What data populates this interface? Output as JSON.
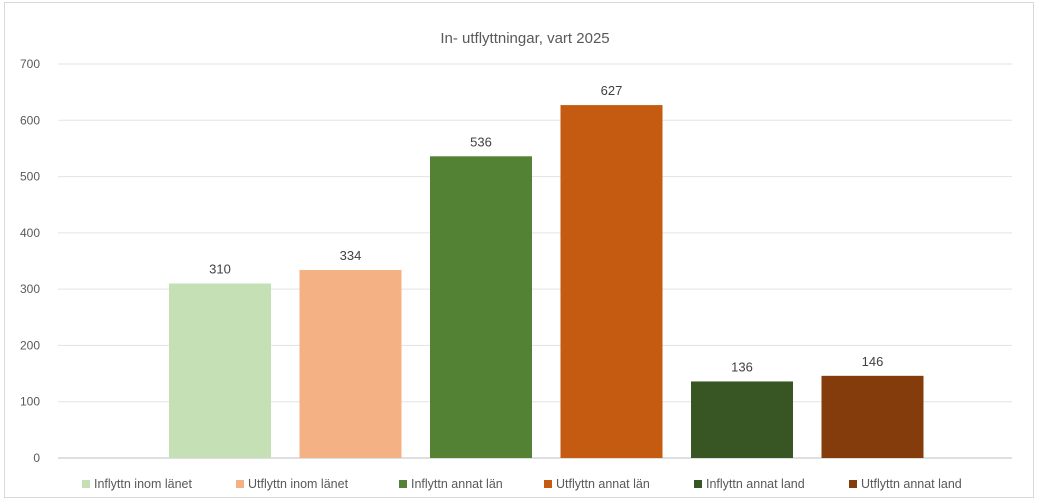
{
  "chart_data": {
    "type": "bar",
    "title": "In- utflyttningar, vart 2025",
    "xlabel": "",
    "ylabel": "",
    "ylim": [
      0,
      700
    ],
    "yticks": [
      0,
      100,
      200,
      300,
      400,
      500,
      600,
      700
    ],
    "grid": true,
    "legend_position": "bottom",
    "series": [
      {
        "name": "Inflyttn inom länet",
        "values": [
          310
        ],
        "color": "#c5e0b4"
      },
      {
        "name": "Utflyttn inom länet",
        "values": [
          334
        ],
        "color": "#f4b183"
      },
      {
        "name": "Inflyttn annat län",
        "values": [
          536
        ],
        "color": "#548235"
      },
      {
        "name": "Utflyttn annat län",
        "values": [
          627
        ],
        "color": "#c55a11"
      },
      {
        "name": "Inflyttn annat land",
        "values": [
          136
        ],
        "color": "#375623"
      },
      {
        "name": "Utflyttn annat land",
        "values": [
          146
        ],
        "color": "#843c0c"
      }
    ]
  }
}
